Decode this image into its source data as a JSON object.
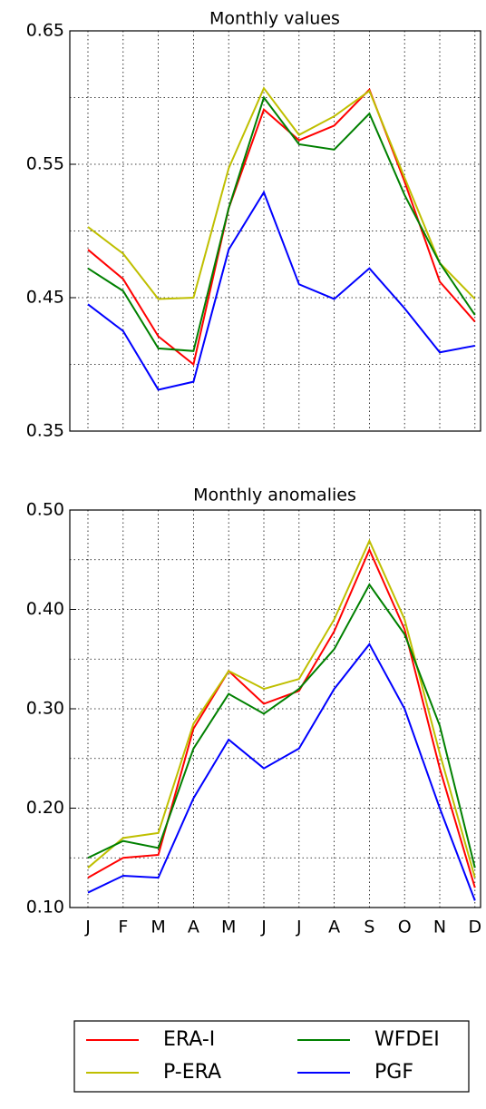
{
  "chart_data": [
    {
      "type": "line",
      "title": "Monthly values",
      "ylim": [
        0.35,
        0.65
      ],
      "yticks": [
        0.65,
        0.55,
        0.45,
        0.35
      ],
      "minor_yticks": [
        0.6,
        0.5,
        0.4
      ],
      "grid": true,
      "series": [
        {
          "name": "ERA-I",
          "color": "#ff0000",
          "values": [
            0.486,
            0.464,
            0.421,
            0.4,
            0.517,
            0.591,
            0.568,
            0.579,
            0.606,
            0.537,
            0.462,
            0.432
          ]
        },
        {
          "name": "P-ERA",
          "color": "#bfbf00",
          "values": [
            0.503,
            0.483,
            0.449,
            0.45,
            0.547,
            0.607,
            0.572,
            0.586,
            0.605,
            0.54,
            0.476,
            0.449
          ]
        },
        {
          "name": "WFDEI",
          "color": "#008000",
          "values": [
            0.472,
            0.455,
            0.412,
            0.41,
            0.517,
            0.6,
            0.565,
            0.561,
            0.588,
            0.527,
            0.476,
            0.437
          ]
        },
        {
          "name": "PGF",
          "color": "#0000ff",
          "values": [
            0.445,
            0.425,
            0.381,
            0.387,
            0.486,
            0.529,
            0.46,
            0.449,
            0.472,
            0.442,
            0.409,
            0.414
          ]
        }
      ]
    },
    {
      "type": "line",
      "title": "Monthly anomalies",
      "categories": [
        "J",
        "F",
        "M",
        "A",
        "M",
        "J",
        "J",
        "A",
        "S",
        "O",
        "N",
        "D"
      ],
      "ylim": [
        0.1,
        0.5
      ],
      "yticks": [
        {
          "value": 0.5,
          "label": "0.50"
        },
        {
          "value": 0.4,
          "label": "0.40"
        },
        {
          "value": 0.3,
          "label": "0.30"
        },
        {
          "value": 0.2,
          "label": "0.20"
        },
        {
          "value": 0.1,
          "label": "0.10"
        }
      ],
      "minor_yticks": [
        0.45,
        0.35,
        0.25,
        0.15
      ],
      "grid": true,
      "series": [
        {
          "color": "#ff0000",
          "values": [
            0.13,
            0.15,
            0.153,
            0.28,
            0.338,
            0.305,
            0.318,
            0.378,
            0.46,
            0.38,
            0.24,
            0.12
          ]
        },
        {
          "color": "#bfbf00",
          "values": [
            0.14,
            0.17,
            0.175,
            0.285,
            0.338,
            0.32,
            0.33,
            0.39,
            0.469,
            0.39,
            0.255,
            0.13
          ]
        },
        {
          "color": "#008000",
          "values": [
            0.15,
            0.167,
            0.16,
            0.26,
            0.315,
            0.295,
            0.32,
            0.36,
            0.425,
            0.375,
            0.283,
            0.14
          ]
        },
        {
          "color": "#0000ff",
          "values": [
            0.115,
            0.132,
            0.13,
            0.21,
            0.269,
            0.24,
            0.26,
            0.32,
            0.365,
            0.3,
            0.2,
            0.107
          ]
        }
      ]
    }
  ]
}
